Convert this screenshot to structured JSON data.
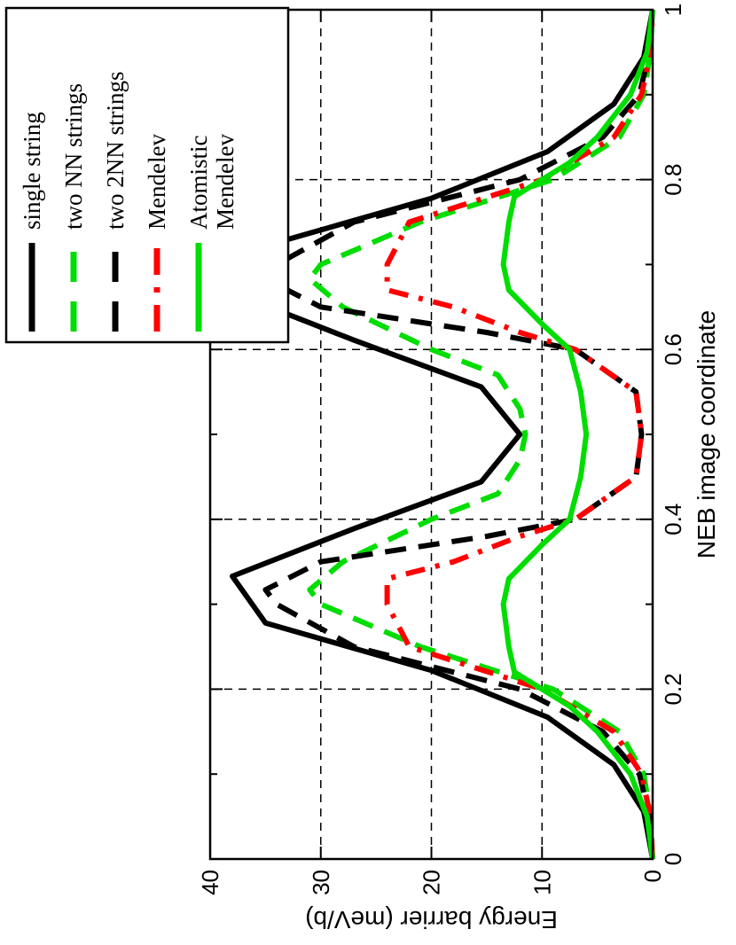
{
  "chart_data": {
    "type": "line",
    "title": "",
    "xlabel": "NEB image coordinate",
    "ylabel": "Energy barrier (meV/b)",
    "xlim": [
      0,
      1
    ],
    "ylim": [
      0,
      40
    ],
    "x_ticks": [
      "0",
      "0.2",
      "0.4",
      "0.6",
      "0.8",
      "1"
    ],
    "y_ticks": [
      "0",
      "10",
      "20",
      "30",
      "40"
    ],
    "grid": true,
    "legend_position": "top-right",
    "series": [
      {
        "name": "single string",
        "color": "#000000",
        "style": "solid",
        "points": [
          [
            0,
            0
          ],
          [
            0.056,
            0.8
          ],
          [
            0.111,
            3.5
          ],
          [
            0.167,
            9.5
          ],
          [
            0.222,
            20
          ],
          [
            0.278,
            35
          ],
          [
            0.333,
            38
          ],
          [
            0.389,
            27
          ],
          [
            0.444,
            15.5
          ],
          [
            0.5,
            12
          ],
          [
            0.556,
            15.5
          ],
          [
            0.611,
            27
          ],
          [
            0.667,
            38
          ],
          [
            0.722,
            35
          ],
          [
            0.778,
            20
          ],
          [
            0.833,
            9.5
          ],
          [
            0.889,
            3.5
          ],
          [
            0.944,
            0.8
          ],
          [
            1,
            0
          ]
        ]
      },
      {
        "name": "two NN strings",
        "color": "#00dd00",
        "style": "dashed",
        "points": [
          [
            0,
            0
          ],
          [
            0.05,
            0.2
          ],
          [
            0.1,
            0.8
          ],
          [
            0.15,
            3
          ],
          [
            0.2,
            9
          ],
          [
            0.25,
            21
          ],
          [
            0.3,
            30
          ],
          [
            0.317,
            31
          ],
          [
            0.35,
            28
          ],
          [
            0.4,
            20
          ],
          [
            0.43,
            14
          ],
          [
            0.47,
            12
          ],
          [
            0.5,
            11.5
          ],
          [
            0.53,
            12
          ],
          [
            0.57,
            14
          ],
          [
            0.6,
            20
          ],
          [
            0.65,
            28
          ],
          [
            0.683,
            31
          ],
          [
            0.7,
            30
          ],
          [
            0.75,
            21
          ],
          [
            0.8,
            9
          ],
          [
            0.85,
            3
          ],
          [
            0.9,
            0.8
          ],
          [
            0.95,
            0.2
          ],
          [
            1,
            0
          ]
        ]
      },
      {
        "name": "two 2NN strings",
        "color": "#000000",
        "style": "dashed",
        "points": [
          [
            0,
            0
          ],
          [
            0.05,
            0.3
          ],
          [
            0.1,
            1.2
          ],
          [
            0.15,
            4.5
          ],
          [
            0.2,
            12
          ],
          [
            0.25,
            27
          ],
          [
            0.3,
            34
          ],
          [
            0.317,
            35
          ],
          [
            0.35,
            30
          ],
          [
            0.38,
            15
          ],
          [
            0.4,
            7
          ],
          [
            0.45,
            1.5
          ],
          [
            0.5,
            1
          ],
          [
            0.55,
            1.5
          ],
          [
            0.6,
            7
          ],
          [
            0.62,
            15
          ],
          [
            0.65,
            30
          ],
          [
            0.683,
            35
          ],
          [
            0.7,
            34
          ],
          [
            0.75,
            27
          ],
          [
            0.8,
            12
          ],
          [
            0.85,
            4.5
          ],
          [
            0.9,
            1.2
          ],
          [
            0.95,
            0.3
          ],
          [
            1,
            0
          ]
        ]
      },
      {
        "name": "Mendelev",
        "color": "#ff0000",
        "style": "dashdot",
        "points": [
          [
            0,
            0
          ],
          [
            0.05,
            0.2
          ],
          [
            0.1,
            1
          ],
          [
            0.15,
            3.5
          ],
          [
            0.2,
            10
          ],
          [
            0.25,
            22
          ],
          [
            0.3,
            24
          ],
          [
            0.33,
            24
          ],
          [
            0.35,
            18
          ],
          [
            0.38,
            12
          ],
          [
            0.4,
            7
          ],
          [
            0.45,
            1.5
          ],
          [
            0.5,
            1
          ],
          [
            0.55,
            1.5
          ],
          [
            0.6,
            7
          ],
          [
            0.62,
            12
          ],
          [
            0.65,
            18
          ],
          [
            0.67,
            24
          ],
          [
            0.7,
            24
          ],
          [
            0.75,
            22
          ],
          [
            0.8,
            10
          ],
          [
            0.85,
            3.5
          ],
          [
            0.9,
            1
          ],
          [
            0.95,
            0.2
          ],
          [
            1,
            0
          ]
        ]
      },
      {
        "name": "Atomistic Mendelev",
        "color": "#00dd00",
        "style": "solid",
        "points": [
          [
            0,
            0
          ],
          [
            0.05,
            0.5
          ],
          [
            0.1,
            2
          ],
          [
            0.15,
            5
          ],
          [
            0.18,
            7.5
          ],
          [
            0.2,
            10
          ],
          [
            0.22,
            12.5
          ],
          [
            0.25,
            13
          ],
          [
            0.3,
            13.5
          ],
          [
            0.33,
            13
          ],
          [
            0.37,
            10
          ],
          [
            0.4,
            7.5
          ],
          [
            0.45,
            6.5
          ],
          [
            0.5,
            6
          ],
          [
            0.55,
            6.5
          ],
          [
            0.6,
            7.5
          ],
          [
            0.63,
            10
          ],
          [
            0.67,
            13
          ],
          [
            0.7,
            13.5
          ],
          [
            0.75,
            13
          ],
          [
            0.78,
            12.5
          ],
          [
            0.8,
            10
          ],
          [
            0.82,
            7.5
          ],
          [
            0.85,
            5
          ],
          [
            0.9,
            2
          ],
          [
            0.95,
            0.5
          ],
          [
            1,
            0
          ]
        ]
      }
    ],
    "legend": {
      "entries": [
        {
          "lines": [
            "single string"
          ],
          "color": "#000000",
          "style": "solid"
        },
        {
          "lines": [
            "two NN strings"
          ],
          "color": "#00dd00",
          "style": "dashed"
        },
        {
          "lines": [
            "two 2NN strings"
          ],
          "color": "#000000",
          "style": "dashed"
        },
        {
          "lines": [
            "Mendelev"
          ],
          "color": "#ff0000",
          "style": "dashdot"
        },
        {
          "lines": [
            "Atomistic",
            "Mendelev"
          ],
          "color": "#00dd00",
          "style": "solid"
        }
      ]
    }
  }
}
